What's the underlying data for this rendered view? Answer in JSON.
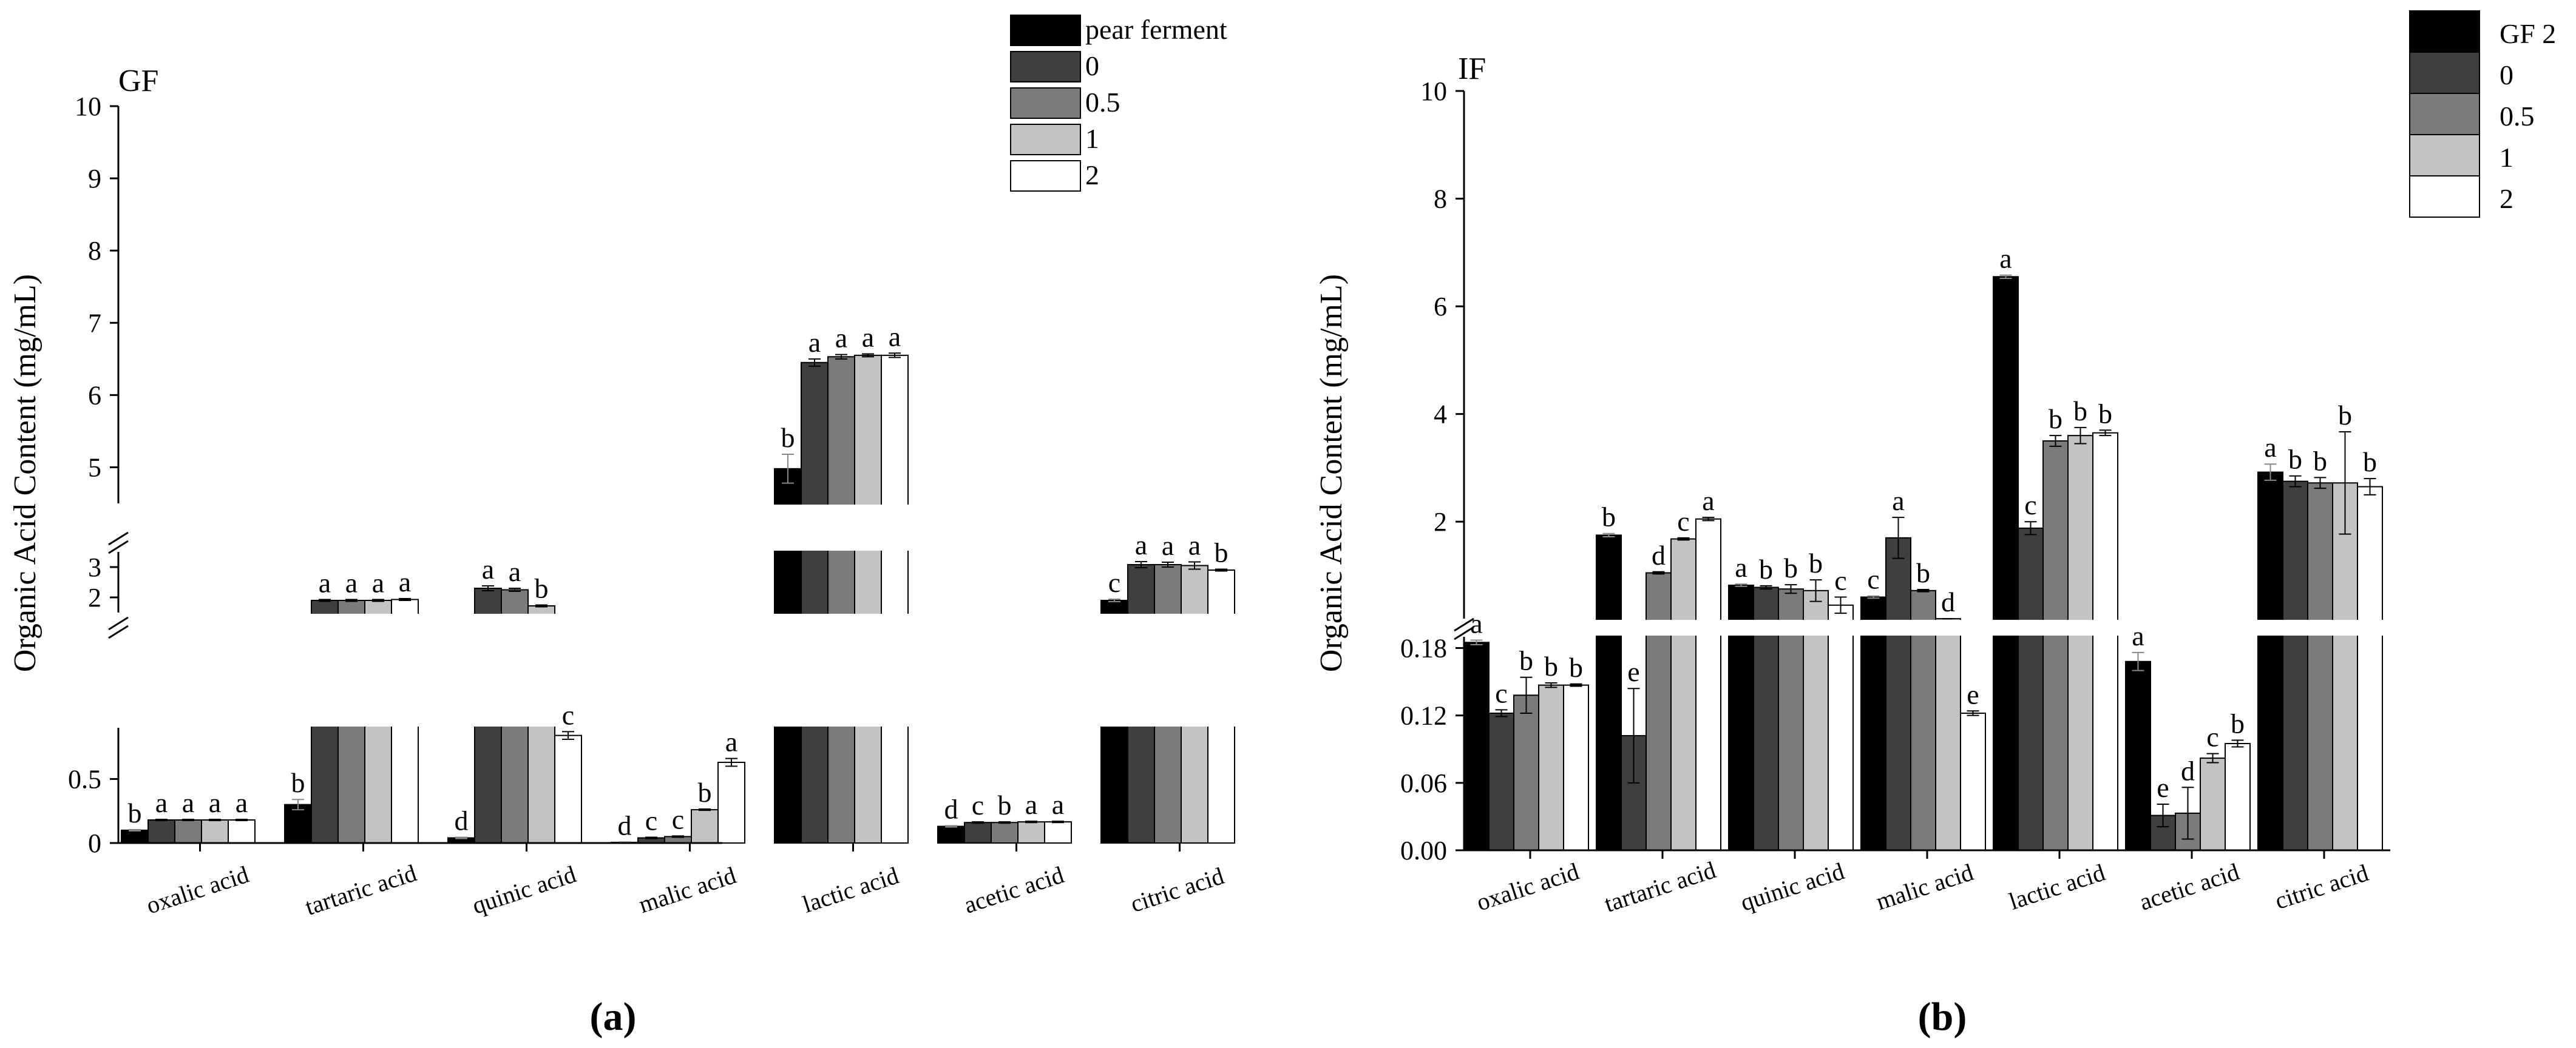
{
  "chart_data": [
    {
      "type": "bar",
      "panel_label": "(a)",
      "title": "GF",
      "ylabel": "Organic Acid Content (mg/mL)",
      "xlabel": "",
      "categories": [
        "oxalic acid",
        "tartaric acid",
        "quinic acid",
        "malic acid",
        "lactic acid",
        "acetic acid",
        "citric acid"
      ],
      "legend": [
        "pear ferment",
        "0",
        "0.5",
        "1",
        "2"
      ],
      "colors": [
        "#000000",
        "#3f3f3f",
        "#7b7b7b",
        "#c3c3c3",
        "#ffffff"
      ],
      "axis_segments": [
        {
          "range": [
            0,
            0.9
          ],
          "ticks": [
            0,
            0.5
          ],
          "tick_labels": [
            "0",
            "0.5"
          ]
        },
        {
          "range": [
            1.5,
            3.5
          ],
          "ticks": [
            2,
            3
          ],
          "tick_labels": [
            "2",
            "3"
          ]
        },
        {
          "range": [
            4.5,
            10
          ],
          "ticks": [
            5,
            6,
            7,
            8,
            9,
            10
          ],
          "tick_labels": [
            "5",
            "6",
            "7",
            "8",
            "9",
            "10"
          ]
        }
      ],
      "series": [
        {
          "name": "pear ferment",
          "values": [
            0.1,
            0.3,
            0.04,
            0.005,
            4.98,
            0.13,
            1.9
          ],
          "errors": [
            0.005,
            0.04,
            0.005,
            0.003,
            0.2,
            0.005,
            0.04
          ],
          "letters": [
            "b",
            "b",
            "d",
            "d",
            "b",
            "d",
            "c"
          ]
        },
        {
          "name": "0",
          "values": [
            0.18,
            1.9,
            2.3,
            0.04,
            6.45,
            0.16,
            3.08
          ],
          "errors": [
            0.005,
            0.03,
            0.08,
            0.005,
            0.05,
            0.005,
            0.1
          ],
          "letters": [
            "a",
            "a",
            "a",
            "c",
            "a",
            "c",
            "a"
          ]
        },
        {
          "name": "0.5",
          "values": [
            0.18,
            1.9,
            2.25,
            0.05,
            6.53,
            0.16,
            3.08
          ],
          "errors": [
            0.005,
            0.03,
            0.05,
            0.005,
            0.03,
            0.005,
            0.08
          ],
          "letters": [
            "a",
            "a",
            "a",
            "c",
            "a",
            "b",
            "a"
          ]
        },
        {
          "name": "1",
          "values": [
            0.18,
            1.9,
            1.72,
            0.26,
            6.55,
            0.165,
            3.05
          ],
          "errors": [
            0.005,
            0.03,
            0.03,
            0.005,
            0.02,
            0.005,
            0.12
          ],
          "letters": [
            "a",
            "a",
            "b",
            "b",
            "a",
            "a",
            "a"
          ]
        },
        {
          "name": "2",
          "values": [
            0.18,
            1.93,
            0.84,
            0.63,
            6.55,
            0.165,
            2.9
          ],
          "errors": [
            0.005,
            0.03,
            0.03,
            0.03,
            0.03,
            0.005,
            0.03
          ],
          "letters": [
            "a",
            "a",
            "c",
            "a",
            "a",
            "a",
            "b"
          ]
        }
      ]
    },
    {
      "type": "bar",
      "panel_label": "(b)",
      "title": "IF",
      "ylabel": "Organic Acid Content (mg/mL)",
      "xlabel": "",
      "categories": [
        "oxalic acid",
        "tartaric acid",
        "quinic acid",
        "malic acid",
        "lactic acid",
        "acetic acid",
        "citric acid"
      ],
      "legend": [
        "GF 2",
        "0",
        "0.5",
        "1",
        "2"
      ],
      "colors": [
        "#000000",
        "#3f3f3f",
        "#7b7b7b",
        "#c3c3c3",
        "#ffffff"
      ],
      "axis_segments": [
        {
          "range": [
            0,
            0.19
          ],
          "ticks": [
            0,
            0.06,
            0.12,
            0.18
          ],
          "tick_labels": [
            "0.00",
            "0.06",
            "0.12",
            "0.18"
          ]
        },
        {
          "range": [
            0.2,
            10
          ],
          "ticks": [
            2,
            4,
            6,
            8,
            10
          ],
          "tick_labels": [
            "2",
            "4",
            "6",
            "8",
            "10"
          ]
        }
      ],
      "series": [
        {
          "name": "GF 2",
          "values": [
            0.185,
            1.75,
            0.82,
            0.6,
            6.55,
            0.168,
            2.92
          ],
          "errors": [
            0.002,
            0.03,
            0.02,
            0.02,
            0.03,
            0.008,
            0.15
          ],
          "letters": [
            "a",
            "b",
            "a",
            "c",
            "a",
            "a",
            "a"
          ]
        },
        {
          "name": "0",
          "values": [
            0.122,
            0.102,
            0.78,
            1.7,
            1.88,
            0.031,
            2.75
          ],
          "errors": [
            0.003,
            0.042,
            0.03,
            0.38,
            0.12,
            0.01,
            0.1
          ],
          "letters": [
            "c",
            "e",
            "b",
            "a",
            "c",
            "e",
            "b"
          ]
        },
        {
          "name": "0.5",
          "values": [
            0.138,
            1.05,
            0.75,
            0.72,
            3.5,
            0.033,
            2.72
          ],
          "errors": [
            0.016,
            0.02,
            0.08,
            0.02,
            0.1,
            0.023,
            0.1
          ],
          "letters": [
            "b",
            "d",
            "b",
            "b",
            "b",
            "d",
            "b"
          ]
        },
        {
          "name": "1",
          "values": [
            0.147,
            1.68,
            0.72,
            0.198,
            3.6,
            0.082,
            2.72
          ],
          "errors": [
            0.002,
            0.02,
            0.2,
            0.001,
            0.15,
            0.004,
            0.95
          ],
          "letters": [
            "b",
            "c",
            "b",
            "d",
            "b",
            "c",
            "b"
          ]
        },
        {
          "name": "2",
          "values": [
            0.147,
            2.05,
            0.45,
            0.122,
            3.65,
            0.095,
            2.65
          ],
          "errors": [
            0.001,
            0.03,
            0.15,
            0.002,
            0.05,
            0.003,
            0.15
          ],
          "letters": [
            "b",
            "a",
            "c",
            "e",
            "b",
            "b",
            "b"
          ]
        }
      ]
    }
  ]
}
